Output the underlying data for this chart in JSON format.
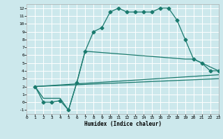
{
  "xlabel": "Humidex (Indice chaleur)",
  "bg_color": "#cce8ec",
  "grid_color": "#ffffff",
  "line_color": "#1a7a6e",
  "xlim": [
    0,
    23
  ],
  "ylim": [
    -1.5,
    12.5
  ],
  "xticks": [
    0,
    1,
    2,
    3,
    4,
    5,
    6,
    7,
    8,
    9,
    10,
    11,
    12,
    13,
    14,
    15,
    16,
    17,
    18,
    19,
    20,
    21,
    22,
    23
  ],
  "yticks": [
    -1,
    0,
    1,
    2,
    3,
    4,
    5,
    6,
    7,
    8,
    9,
    10,
    11,
    12
  ],
  "lines": [
    {
      "x": [
        1,
        2,
        3,
        4,
        5,
        6,
        7,
        8,
        9,
        10,
        11,
        12,
        13,
        14,
        15,
        16,
        17,
        18,
        19,
        20,
        21,
        22,
        23
      ],
      "y": [
        2,
        0,
        0,
        0.2,
        -1,
        2.5,
        6.5,
        9.0,
        9.5,
        11.5,
        12.0,
        11.5,
        11.5,
        11.5,
        11.5,
        12.0,
        12.0,
        10.5,
        8.0,
        5.5,
        5.0,
        4.0,
        4.0
      ],
      "marker": "D",
      "ms": 2.5,
      "lw": 0.9
    },
    {
      "x": [
        1,
        2,
        3,
        4,
        5,
        6,
        7,
        19,
        20,
        22,
        23
      ],
      "y": [
        2,
        0.5,
        0.5,
        0.5,
        -1,
        2.5,
        6.5,
        5.5,
        5.5,
        4.5,
        4.0
      ],
      "marker": null,
      "ms": 0,
      "lw": 0.9
    },
    {
      "x": [
        1,
        23
      ],
      "y": [
        2,
        3.5
      ],
      "marker": null,
      "ms": 0,
      "lw": 0.9
    },
    {
      "x": [
        1,
        23
      ],
      "y": [
        2,
        3.0
      ],
      "marker": null,
      "ms": 0,
      "lw": 0.9
    }
  ]
}
